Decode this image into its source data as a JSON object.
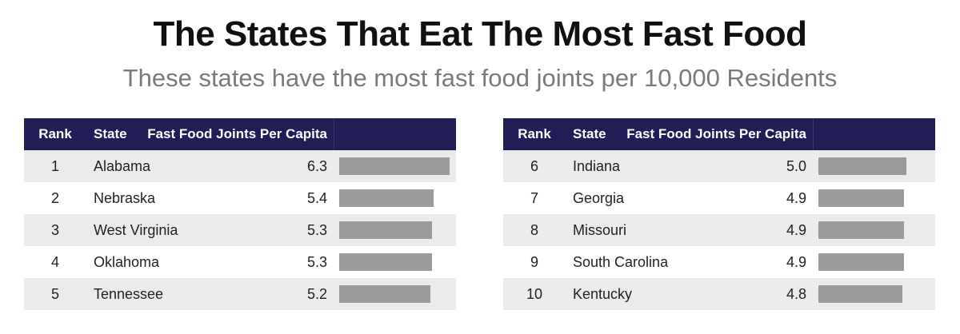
{
  "title": "The States That Eat The Most Fast Food",
  "subtitle": "These states have the most fast food joints per 10,000 Residents",
  "headers": {
    "rank": "Rank",
    "state": "State",
    "value": "Fast Food Joints Per Capita"
  },
  "chart_data": {
    "type": "table",
    "title": "The States That Eat The Most Fast Food",
    "columns": [
      "Rank",
      "State",
      "Fast Food Joints Per Capita"
    ],
    "max": 6.3,
    "rows": [
      {
        "rank": "1",
        "state": "Alabama",
        "value": "6.3"
      },
      {
        "rank": "2",
        "state": "Nebraska",
        "value": "5.4"
      },
      {
        "rank": "3",
        "state": "West Virginia",
        "value": "5.3"
      },
      {
        "rank": "4",
        "state": "Oklahoma",
        "value": "5.3"
      },
      {
        "rank": "5",
        "state": "Tennessee",
        "value": "5.2"
      },
      {
        "rank": "6",
        "state": "Indiana",
        "value": "5.0"
      },
      {
        "rank": "7",
        "state": "Georgia",
        "value": "4.9"
      },
      {
        "rank": "8",
        "state": "Missouri",
        "value": "4.9"
      },
      {
        "rank": "9",
        "state": "South Carolina",
        "value": "4.9"
      },
      {
        "rank": "10",
        "state": "Kentucky",
        "value": "4.8"
      }
    ]
  }
}
